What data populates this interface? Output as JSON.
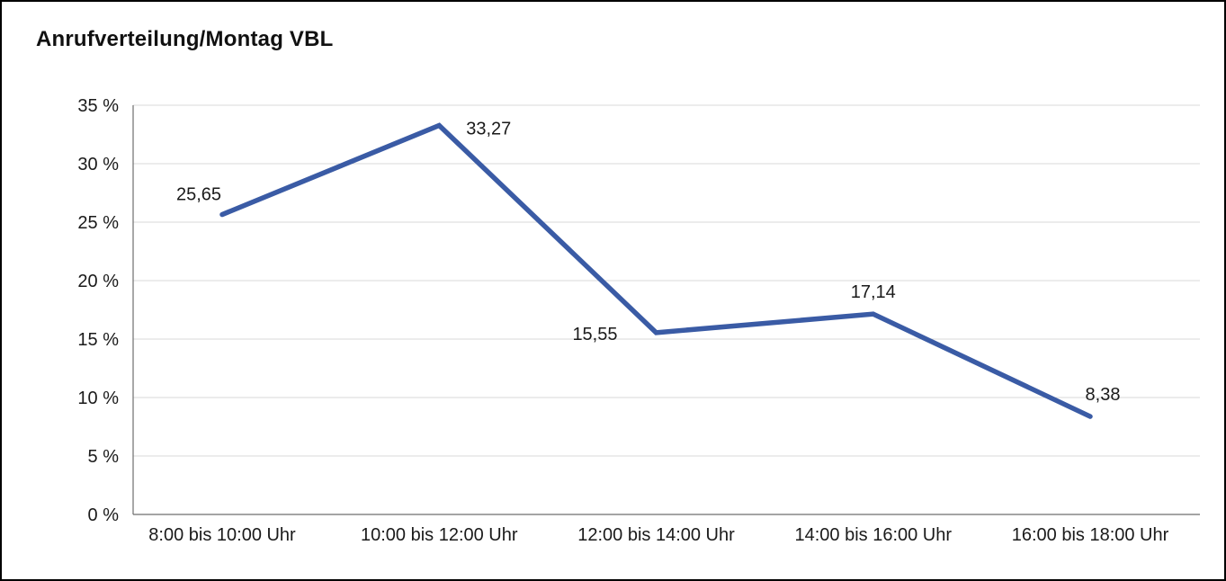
{
  "window": {
    "background": "#ffffff",
    "border_color": "#000000"
  },
  "chart_data": {
    "type": "line",
    "title": "Anrufverteilung/Montag VBL",
    "categories": [
      "8:00 bis 10:00 Uhr",
      "10:00 bis 12:00 Uhr",
      "12:00 bis 14:00 Uhr",
      "14:00 bis 16:00 Uhr",
      "16:00 bis 18:00 Uhr"
    ],
    "values": [
      25.65,
      33.27,
      15.55,
      17.14,
      8.38
    ],
    "point_labels": [
      "25,65",
      "33,27",
      "15,55",
      "17,14",
      "8,38"
    ],
    "y_ticks": [
      "0 %",
      "5 %",
      "10 %",
      "15 %",
      "20 %",
      "25 %",
      "30 %",
      "35 %"
    ],
    "ylim": [
      0,
      35
    ],
    "y_step": 5,
    "xlabel": "",
    "ylabel": "",
    "grid": "horizontal",
    "legend": "none",
    "line_color": "#3a5ba5"
  }
}
